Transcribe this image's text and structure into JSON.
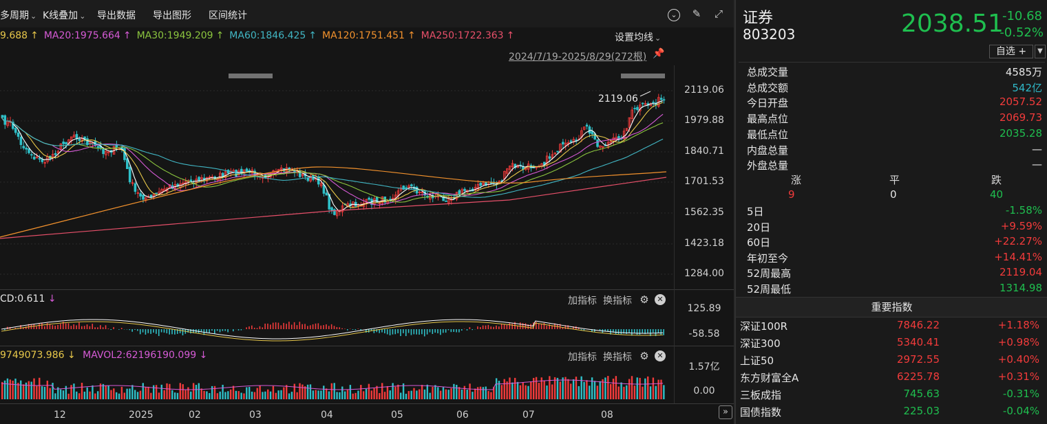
{
  "toolbar": {
    "items": [
      "多周期",
      "K线叠加",
      "导出数据",
      "导出图形",
      "区间统计"
    ],
    "chevron": "⌄"
  },
  "ma_legend": [
    {
      "text": "9.688",
      "color": "#e8c84a",
      "arrow": "↑"
    },
    {
      "text": "MA20:1975.664",
      "color": "#d65bd6",
      "arrow": "↑"
    },
    {
      "text": "MA30:1949.209",
      "color": "#8cc63f",
      "arrow": "↑"
    },
    {
      "text": "MA60:1846.425",
      "color": "#41b6c4",
      "arrow": "↑"
    },
    {
      "text": "MA120:1751.451",
      "color": "#f3922d",
      "arrow": "↑"
    },
    {
      "text": "MA250:1722.363",
      "color": "#e8506a",
      "arrow": "↑"
    }
  ],
  "settings_label": "设置均线",
  "date_range": "2024/7/19-2025/8/29(272根)",
  "annotation_high": "2119.06",
  "price_axis": [
    "2119.06",
    "1979.88",
    "1840.71",
    "1701.53",
    "1562.35",
    "1423.18",
    "1284.00"
  ],
  "macd": {
    "label": "CD:0.611",
    "arrow": "↓",
    "axis": [
      "125.89",
      "-58.58"
    ],
    "add_label": "加指标",
    "switch_label": "换指标"
  },
  "vol": {
    "label1": "9749073.986",
    "arrow1": "↓",
    "label2": "MAVOL2:62196190.099",
    "arrow2": "↓",
    "axis": [
      "1.57亿",
      "0.00"
    ],
    "add_label": "加指标",
    "switch_label": "换指标"
  },
  "months": [
    "12",
    "2025",
    "02",
    "03",
    "04",
    "05",
    "06",
    "07",
    "08"
  ],
  "stock": {
    "name": "证券",
    "code": "803203",
    "price": "2038.51",
    "change": "-10.68",
    "change_pct": "-0.52%",
    "watch_label": "自选 +"
  },
  "stats": [
    {
      "k": "总成交量",
      "v": "4585万",
      "cls": "white"
    },
    {
      "k": "总成交额",
      "v": "542亿",
      "cls": "cyan"
    },
    {
      "k": "今日开盘",
      "v": "2057.52",
      "cls": "red"
    },
    {
      "k": "最高点位",
      "v": "2069.73",
      "cls": "red"
    },
    {
      "k": "最低点位",
      "v": "2035.28",
      "cls": "green"
    },
    {
      "k": "内盘总量",
      "v": "—",
      "cls": "white"
    },
    {
      "k": "外盘总量",
      "v": "—",
      "cls": "white"
    }
  ],
  "breadth": {
    "up_label": "涨",
    "flat_label": "平",
    "down_label": "跌",
    "up": "9",
    "flat": "0",
    "down": "40"
  },
  "periods": [
    {
      "k": "5日",
      "v": "-1.58%",
      "cls": "green"
    },
    {
      "k": "20日",
      "v": "+9.59%",
      "cls": "red"
    },
    {
      "k": "60日",
      "v": "+22.27%",
      "cls": "red"
    },
    {
      "k": "年初至今",
      "v": "+14.41%",
      "cls": "red"
    },
    {
      "k": "52周最高",
      "v": "2119.04",
      "cls": "red"
    },
    {
      "k": "52周最低",
      "v": "1314.98",
      "cls": "green"
    }
  ],
  "indices_title": "重要指数",
  "indices": [
    {
      "n": "深证100R",
      "p": "7846.22",
      "c": "+1.18%",
      "cls": "red"
    },
    {
      "n": "深证300",
      "p": "5340.41",
      "c": "+0.98%",
      "cls": "red"
    },
    {
      "n": "上证50",
      "p": "2972.55",
      "c": "+0.40%",
      "cls": "red"
    },
    {
      "n": "东方财富全A",
      "p": "6225.78",
      "c": "+0.31%",
      "cls": "red"
    },
    {
      "n": "三板成指",
      "p": "745.63",
      "c": "-0.31%",
      "cls": "green"
    },
    {
      "n": "国债指数",
      "p": "225.03",
      "c": "-0.04%",
      "cls": "green"
    }
  ],
  "colors": {
    "up": "#f23b3b",
    "down": "#1fbf4f",
    "cyan": "#2fb8c8"
  },
  "icons": [
    "chevron-down-icon",
    "pen-icon",
    "expand-icon",
    "pin-icon",
    "gear-icon",
    "close-icon",
    "double-chevron-right-icon",
    "dropdown-icon"
  ]
}
